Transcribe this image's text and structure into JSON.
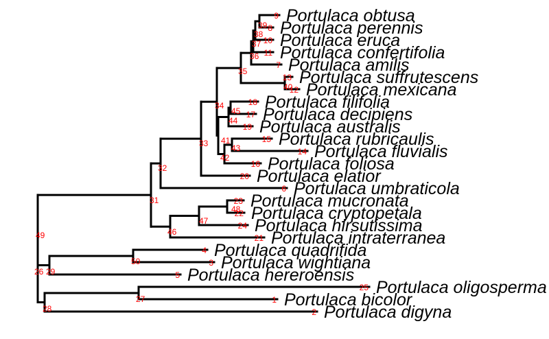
{
  "tree": {
    "colors": {
      "branch": "#000000",
      "node_label": "#ff0000",
      "tip_label": "#000000"
    },
    "tips": [
      {
        "number": "9",
        "name": "Portulaca obtusa"
      },
      {
        "number": "8",
        "name": "Portulaca perennis"
      },
      {
        "number": "10",
        "name": "Portulaca eruca"
      },
      {
        "number": "11",
        "name": "Portulaca confertifolia"
      },
      {
        "number": "7",
        "name": "Portulaca amilis"
      },
      {
        "number": "13",
        "name": "Portulaca suffrutescens"
      },
      {
        "number": "12",
        "name": "Portulaca mexicana"
      },
      {
        "number": "18",
        "name": "Portulaca filifolia"
      },
      {
        "number": "17",
        "name": "Portulaca decipiens"
      },
      {
        "number": "19",
        "name": "Portulaca australis"
      },
      {
        "number": "15",
        "name": "Portulaca rubricaulis"
      },
      {
        "number": "14",
        "name": "Portulaca fluvialis"
      },
      {
        "number": "16",
        "name": "Portulaca foliosa"
      },
      {
        "number": "20",
        "name": "Portulaca elatior"
      },
      {
        "number": "6",
        "name": "Portulaca umbraticola"
      },
      {
        "number": "23",
        "name": "Portulaca mucronata"
      },
      {
        "number": "22",
        "name": "Portulaca cryptopetala"
      },
      {
        "number": "24",
        "name": "Portulaca hirsutissima"
      },
      {
        "number": "21",
        "name": "Portulaca intraterranea"
      },
      {
        "number": "4",
        "name": "Portulaca quadrifida"
      },
      {
        "number": "3",
        "name": "Portulaca wightiana"
      },
      {
        "number": "5",
        "name": "Portulaca hereroensis"
      },
      {
        "number": "25",
        "name": "Portulaca oligosperma"
      },
      {
        "number": "1",
        "name": "Portulaca bicolor"
      },
      {
        "number": "2",
        "name": "Portulaca digyna"
      }
    ],
    "internal_nodes": [
      "39",
      "38",
      "37",
      "36",
      "40",
      "35",
      "45",
      "44",
      "43",
      "42",
      "41",
      "34",
      "33",
      "48",
      "47",
      "46",
      "32",
      "31",
      "50",
      "29",
      "27",
      "28",
      "26",
      "49"
    ]
  }
}
